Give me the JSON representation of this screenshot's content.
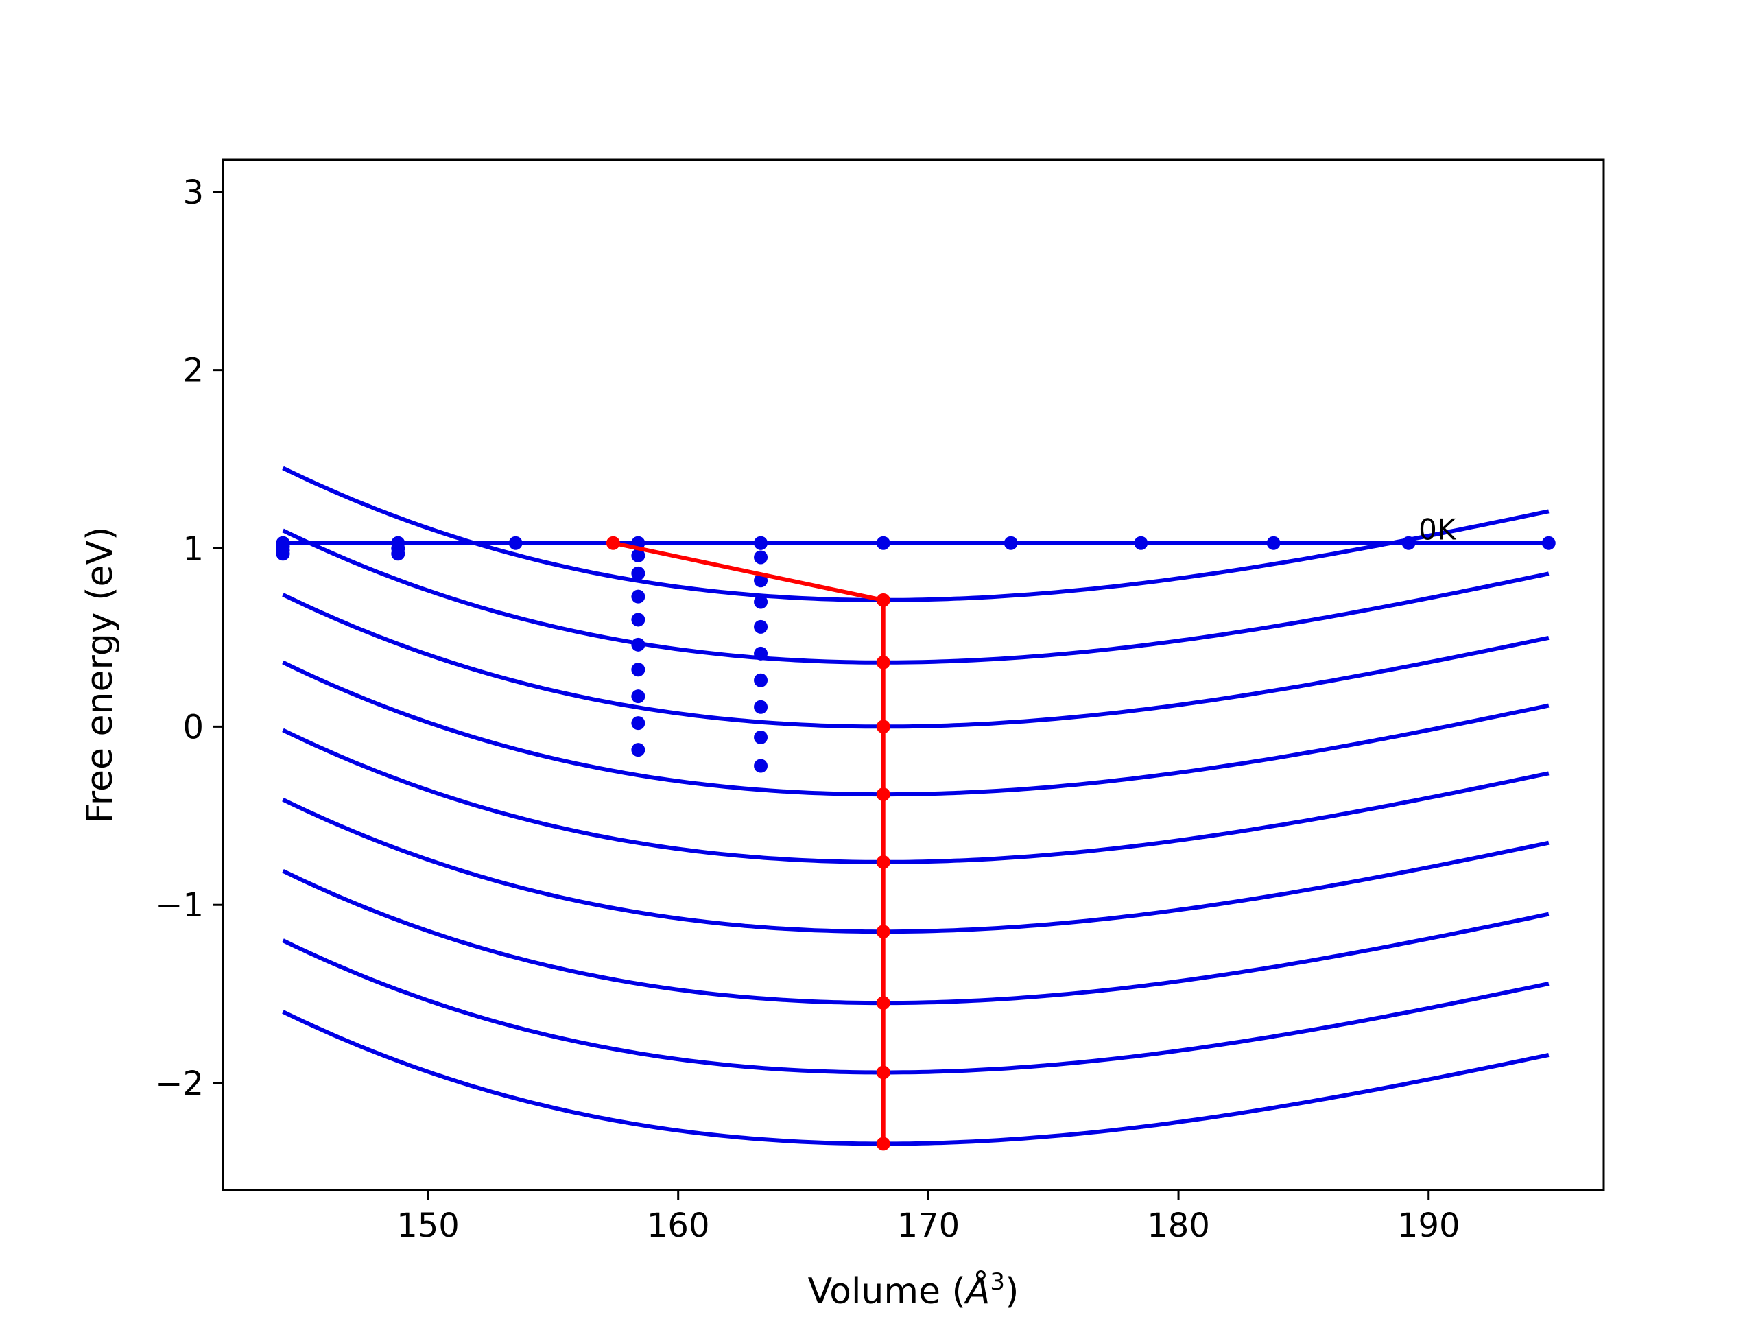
{
  "chart_data": {
    "type": "line",
    "xlabel_prefix": "Volume (",
    "xlabel_unit": "Å",
    "xlabel_exp": "3",
    "xlabel_suffix": ")",
    "ylabel": "Free energy (eV)",
    "xlim": [
      141.8,
      197.0
    ],
    "ylim": [
      -2.6,
      3.18
    ],
    "xticks": [
      150,
      160,
      170,
      180,
      190
    ],
    "yticks": [
      3,
      2,
      1,
      0,
      -1,
      -2
    ],
    "ytick_labels": [
      "3",
      "2",
      "1",
      "0",
      "−1",
      "−2"
    ],
    "grid": false,
    "annotation": {
      "text": "0K",
      "x": 189.6,
      "y": 1.05
    },
    "curve_model": {
      "V0": 168.2,
      "A": 1.15e-05,
      "B": 0.00101,
      "x_range": [
        144.2,
        194.8
      ]
    },
    "curve_minima": [
      0.71,
      0.36,
      0.0,
      -0.38,
      -0.76,
      -1.15,
      -1.55,
      -1.94,
      -2.34
    ],
    "reference_line": {
      "y": 1.03,
      "x_range": [
        144.2,
        194.8
      ],
      "points_x": [
        144.2,
        148.8,
        153.5,
        158.4,
        163.3,
        168.2,
        173.3,
        178.5,
        183.8,
        189.2,
        194.8
      ]
    },
    "dotted_columns": [
      {
        "x": 158.4,
        "y": [
          1.03,
          0.96,
          0.86,
          0.73,
          0.6,
          0.46,
          0.32,
          0.17,
          0.02,
          -0.13
        ]
      },
      {
        "x": 163.3,
        "y": [
          1.03,
          0.95,
          0.82,
          0.7,
          0.56,
          0.41,
          0.26,
          0.11,
          -0.06,
          -0.22
        ]
      }
    ],
    "left_edge_points": {
      "x": [
        144.2,
        148.8
      ],
      "y": [
        [
          1.03,
          1.01,
          0.99,
          0.97
        ],
        [
          1.03,
          1.0,
          0.97
        ]
      ]
    },
    "red_path": {
      "x": [
        157.4,
        168.2,
        168.2,
        168.2,
        168.2,
        168.2,
        168.2,
        168.2,
        168.2,
        168.2
      ],
      "y": [
        1.03,
        0.71,
        0.36,
        0.0,
        -0.38,
        -0.76,
        -1.15,
        -1.55,
        -1.94,
        -2.34
      ]
    },
    "colors": {
      "curves": "#0000e6",
      "path": "#ff0000",
      "frame": "#000000"
    }
  }
}
